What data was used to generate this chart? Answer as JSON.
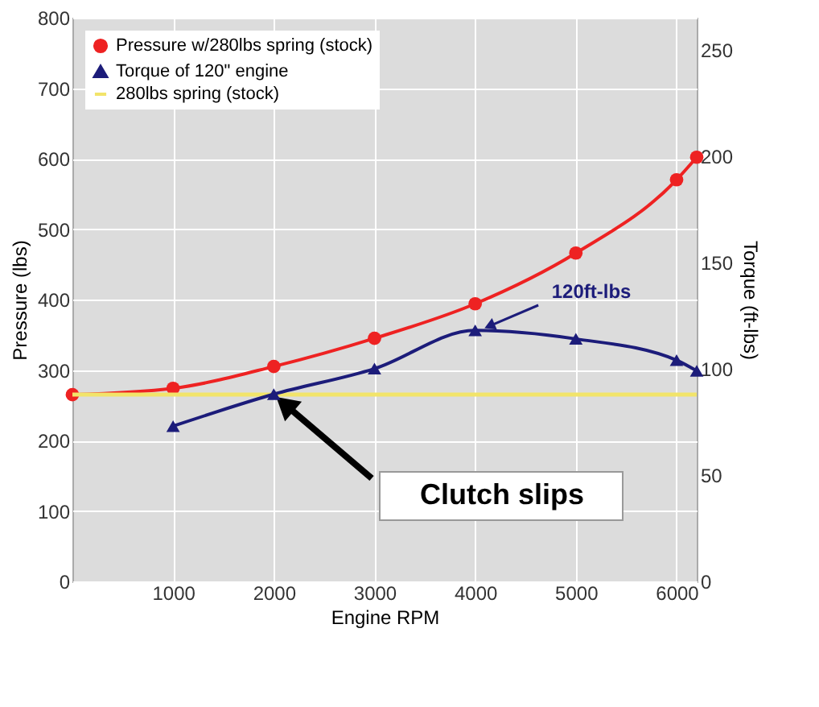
{
  "chart_data": {
    "type": "line",
    "xlabel": "Engine RPM",
    "ylabel": "Pressure (lbs)",
    "y2label": "Torque (ft-lbs)",
    "series": [
      {
        "name": "Pressure w/280lbs spring (stock)",
        "color": "#ee2222",
        "marker": "circle",
        "x": [
          0,
          1000,
          2000,
          3000,
          4000,
          5000,
          6000,
          6200
        ],
        "values": [
          265,
          274,
          305,
          345,
          394,
          466,
          570,
          602
        ]
      },
      {
        "name": "Torque of 120\" engine",
        "color": "#1c1c7a",
        "marker": "triangle",
        "axis": "y2",
        "x": [
          1000,
          2000,
          3000,
          4000,
          5000,
          6000,
          6200
        ],
        "values": [
          73,
          88,
          100,
          118,
          114,
          104,
          99
        ]
      },
      {
        "name": "280lbs spring (stock)",
        "color": "#f2e46a",
        "marker": "none",
        "x": [
          0,
          6200
        ],
        "values": [
          265,
          265
        ]
      }
    ],
    "xlim": [
      0,
      6200
    ],
    "xticks": [
      1000,
      2000,
      3000,
      4000,
      5000,
      6000
    ],
    "ylim": [
      0,
      800
    ],
    "yticks": [
      0,
      100,
      200,
      300,
      400,
      500,
      600,
      700,
      800
    ],
    "y2lim": [
      0,
      265
    ],
    "y2ticks": [
      0,
      50,
      100,
      150,
      200,
      250
    ],
    "annotations": [
      {
        "text": "120ft-lbs",
        "x": 4100,
        "y": 360
      },
      "Clutch slips"
    ],
    "grid": true,
    "legend": "top left"
  }
}
